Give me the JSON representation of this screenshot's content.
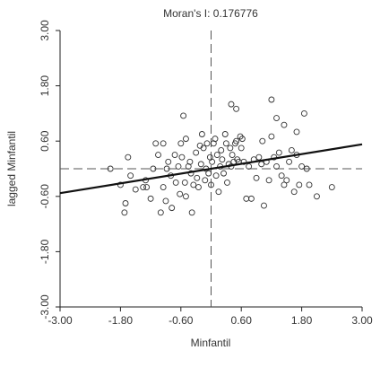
{
  "chart_data": {
    "type": "scatter",
    "title": "Moran's I: 0.176776",
    "xlabel": "Minfantil",
    "ylabel": "lagged Minfantil",
    "xlim": [
      -3.0,
      3.0
    ],
    "ylim": [
      -3.0,
      3.0
    ],
    "xticks": [
      "-3.00",
      "-1.80",
      "-0.60",
      "0.60",
      "1.80",
      "3.00"
    ],
    "yticks": [
      "-3.00",
      "-1.80",
      "-0.60",
      "0.60",
      "1.80",
      "3.00"
    ],
    "grid": false,
    "regression_line": {
      "slope": 0.176776,
      "intercept": 0.0
    },
    "mean_lines": {
      "x": 0.0,
      "y": 0.0
    },
    "points": [
      [
        -2.0,
        0.0
      ],
      [
        -1.8,
        -0.35
      ],
      [
        -1.65,
        0.25
      ],
      [
        -1.6,
        -0.15
      ],
      [
        -1.7,
        -0.75
      ],
      [
        -1.72,
        -0.95
      ],
      [
        -1.5,
        -0.45
      ],
      [
        -1.35,
        -0.4
      ],
      [
        -1.3,
        -0.25
      ],
      [
        -1.28,
        -0.4
      ],
      [
        -1.2,
        -0.65
      ],
      [
        -1.15,
        0.0
      ],
      [
        -1.1,
        0.55
      ],
      [
        -1.05,
        0.3
      ],
      [
        -1.0,
        -0.95
      ],
      [
        -0.95,
        0.55
      ],
      [
        -0.95,
        -0.4
      ],
      [
        -0.9,
        -0.7
      ],
      [
        -0.88,
        0.0
      ],
      [
        -0.85,
        0.15
      ],
      [
        -0.8,
        -0.15
      ],
      [
        -0.78,
        -0.85
      ],
      [
        -0.72,
        0.3
      ],
      [
        -0.7,
        -0.3
      ],
      [
        -0.65,
        0.05
      ],
      [
        -0.62,
        -0.55
      ],
      [
        -0.6,
        0.55
      ],
      [
        -0.58,
        0.25
      ],
      [
        -0.55,
        1.15
      ],
      [
        -0.52,
        -0.3
      ],
      [
        -0.5,
        0.65
      ],
      [
        -0.5,
        -0.6
      ],
      [
        -0.45,
        0.05
      ],
      [
        -0.42,
        0.15
      ],
      [
        -0.4,
        -0.1
      ],
      [
        -0.38,
        -0.95
      ],
      [
        -0.35,
        -0.35
      ],
      [
        -0.3,
        0.35
      ],
      [
        -0.28,
        -0.2
      ],
      [
        -0.25,
        -0.4
      ],
      [
        -0.22,
        0.5
      ],
      [
        -0.2,
        0.1
      ],
      [
        -0.18,
        0.75
      ],
      [
        -0.15,
        0.45
      ],
      [
        -0.12,
        -0.25
      ],
      [
        -0.1,
        0.0
      ],
      [
        -0.08,
        0.55
      ],
      [
        -0.05,
        -0.1
      ],
      [
        -0.02,
        0.25
      ],
      [
        0.0,
        -0.35
      ],
      [
        0.02,
        0.15
      ],
      [
        0.05,
        0.55
      ],
      [
        0.08,
        0.65
      ],
      [
        0.1,
        -0.15
      ],
      [
        0.12,
        0.3
      ],
      [
        0.15,
        -0.5
      ],
      [
        0.18,
        0.05
      ],
      [
        0.2,
        0.4
      ],
      [
        0.22,
        0.2
      ],
      [
        0.25,
        -0.1
      ],
      [
        0.28,
        0.75
      ],
      [
        0.3,
        0.55
      ],
      [
        0.32,
        -0.3
      ],
      [
        0.35,
        0.1
      ],
      [
        0.38,
        0.45
      ],
      [
        0.4,
        0.05
      ],
      [
        0.42,
        0.3
      ],
      [
        0.45,
        0.15
      ],
      [
        0.48,
        0.55
      ],
      [
        0.5,
        0.6
      ],
      [
        0.52,
        0.2
      ],
      [
        0.55,
        0.15
      ],
      [
        0.58,
        0.7
      ],
      [
        0.6,
        0.45
      ],
      [
        0.62,
        0.65
      ],
      [
        0.65,
        0.15
      ],
      [
        0.7,
        -0.65
      ],
      [
        0.75,
        0.05
      ],
      [
        0.8,
        -0.65
      ],
      [
        0.85,
        0.2
      ],
      [
        0.9,
        -0.2
      ],
      [
        0.95,
        0.25
      ],
      [
        1.0,
        0.1
      ],
      [
        1.02,
        0.6
      ],
      [
        1.05,
        -0.8
      ],
      [
        1.1,
        0.15
      ],
      [
        1.15,
        -0.25
      ],
      [
        1.2,
        0.7
      ],
      [
        1.25,
        0.25
      ],
      [
        1.3,
        0.05
      ],
      [
        1.35,
        0.35
      ],
      [
        1.4,
        -0.15
      ],
      [
        1.45,
        -0.35
      ],
      [
        1.5,
        -0.25
      ],
      [
        1.55,
        0.15
      ],
      [
        1.6,
        0.4
      ],
      [
        1.65,
        -0.5
      ],
      [
        1.7,
        0.3
      ],
      [
        1.75,
        -0.35
      ],
      [
        1.8,
        0.05
      ],
      [
        1.85,
        1.2
      ],
      [
        1.9,
        0.0
      ],
      [
        1.95,
        -0.35
      ],
      [
        2.1,
        -0.6
      ],
      [
        2.4,
        -0.4
      ],
      [
        1.3,
        1.1
      ],
      [
        1.45,
        0.95
      ],
      [
        1.7,
        0.8
      ],
      [
        0.4,
        1.4
      ],
      [
        0.5,
        1.3
      ],
      [
        1.2,
        1.5
      ]
    ]
  }
}
